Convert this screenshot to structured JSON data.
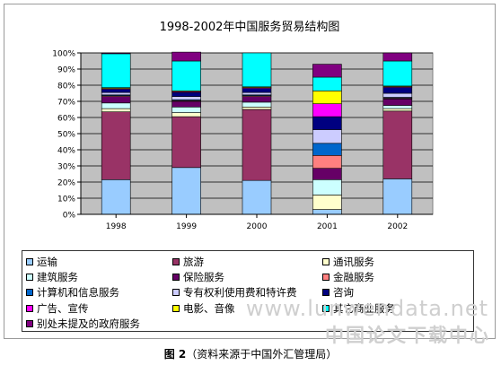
{
  "title": "1998-2002年中国服务贸易结构图",
  "caption": {
    "label": "图 2",
    "source": "（资料来源于中国外汇管理局）"
  },
  "watermark": {
    "line1": "www.lunwendata.net",
    "line2": "中国论文下载中心"
  },
  "colors": {
    "plot_bg": "#c0c0c0",
    "axis": "#000000"
  },
  "chart_data": {
    "type": "bar",
    "stacked": true,
    "categories": [
      "1998",
      "1999",
      "2000",
      "2001",
      "2002"
    ],
    "y_ticks": [
      "0%",
      "10%",
      "20%",
      "30%",
      "40%",
      "50%",
      "60%",
      "70%",
      "80%",
      "90%",
      "100%"
    ],
    "ylim": [
      0,
      100
    ],
    "grid": true,
    "legend_position": "bottom",
    "series": [
      {
        "name": "运输",
        "color": "#99ccff",
        "values": [
          21.5,
          29.0,
          21.0,
          3.0,
          22.0
        ]
      },
      {
        "name": "旅游",
        "color": "#993366",
        "values": [
          42.0,
          31.5,
          44.0,
          0.0,
          42.0
        ]
      },
      {
        "name": "通讯服务",
        "color": "#ffffcc",
        "values": [
          2.0,
          2.5,
          1.5,
          9.0,
          1.5
        ]
      },
      {
        "name": "建筑服务",
        "color": "#ccffff",
        "values": [
          3.5,
          3.5,
          3.0,
          9.5,
          2.0
        ]
      },
      {
        "name": "保险服务",
        "color": "#660066",
        "values": [
          4.0,
          3.5,
          3.5,
          7.0,
          4.0
        ]
      },
      {
        "name": "金融服务",
        "color": "#ff8080",
        "values": [
          0.5,
          0.5,
          0.5,
          8.0,
          0.5
        ]
      },
      {
        "name": "计算机和信息服务",
        "color": "#0066cc",
        "values": [
          0.5,
          0.5,
          0.5,
          7.5,
          0.5
        ]
      },
      {
        "name": "专有权利使用费和特许费",
        "color": "#ccccff",
        "values": [
          1.5,
          2.0,
          1.5,
          8.5,
          2.5
        ]
      },
      {
        "name": "咨询",
        "color": "#000080",
        "values": [
          2.0,
          2.5,
          2.5,
          8.0,
          3.5
        ]
      },
      {
        "name": "广告、宣传",
        "color": "#ff00ff",
        "values": [
          0.5,
          0.5,
          0.5,
          8.0,
          0.5
        ]
      },
      {
        "name": "电影、音像",
        "color": "#ffff00",
        "values": [
          0.5,
          0.5,
          0.5,
          8.0,
          0.5
        ]
      },
      {
        "name": "其它商业服务",
        "color": "#00ffff",
        "values": [
          21.0,
          18.5,
          21.0,
          8.5,
          15.5
        ]
      },
      {
        "name": "别处未提及的政府服务",
        "color": "#800080",
        "values": [
          0.5,
          5.5,
          0.0,
          8.0,
          5.0
        ]
      }
    ]
  }
}
